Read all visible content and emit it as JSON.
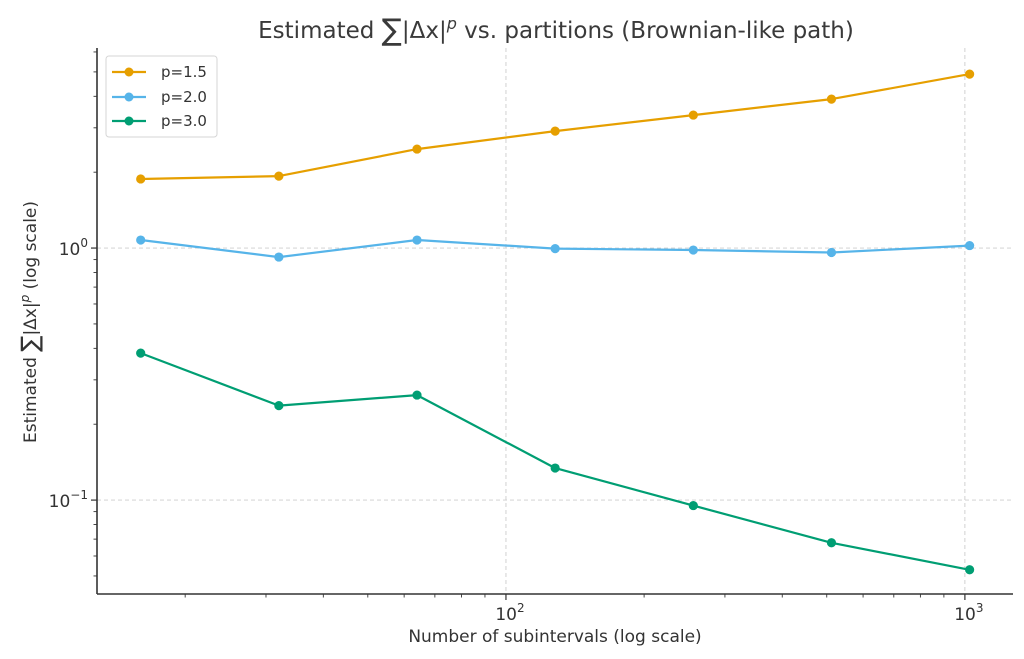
{
  "chart_data": {
    "type": "line",
    "title": {
      "prefix": "Estimated ",
      "sum_symbol": "∑",
      "expr": "|Δx|",
      "exp": "p",
      "suffix": " vs. partitions (Brownian-like path)"
    },
    "xlabel": "Number of subintervals (log scale)",
    "ylabel": {
      "prefix": "Estimated ",
      "sum_symbol": "∑",
      "expr": "|Δx|",
      "exp": "p",
      "suffix": " (log scale)"
    },
    "xscale": "log",
    "yscale": "log",
    "xlim": [
      12.85,
      1273
    ],
    "ylim": [
      0.0424,
      6.22
    ],
    "x_ticks": [
      {
        "value": 100,
        "base": "10",
        "exp": "2"
      },
      {
        "value": 1000,
        "base": "10",
        "exp": "3"
      }
    ],
    "y_ticks": [
      {
        "value": 1,
        "base": "10",
        "exp": "0"
      },
      {
        "value": 0.1,
        "base": "10",
        "exp": "−1"
      }
    ],
    "grid": true,
    "grid_style": "dashed",
    "legend_position": "top-left",
    "x": [
      16,
      32,
      64,
      128,
      256,
      512,
      1024
    ],
    "series": [
      {
        "name": "p=1.5",
        "color": "#E69F00",
        "values": [
          1.88,
          1.93,
          2.47,
          2.91,
          3.37,
          3.9,
          4.9
        ]
      },
      {
        "name": "p=2.0",
        "color": "#56B4E9",
        "values": [
          1.076,
          0.921,
          1.076,
          0.995,
          0.982,
          0.96,
          1.023
        ]
      },
      {
        "name": "p=3.0",
        "color": "#009E73",
        "values": [
          0.383,
          0.237,
          0.261,
          0.134,
          0.0951,
          0.0677,
          0.0529
        ]
      }
    ]
  }
}
